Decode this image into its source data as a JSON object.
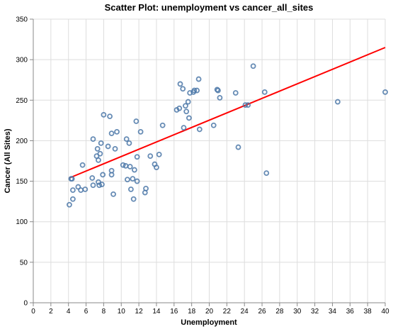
{
  "chart_data": {
    "type": "scatter",
    "title": "Scatter Plot: unemployment vs cancer_all_sites",
    "xlabel": "Unemployment",
    "ylabel": "Cancer (All Sites)",
    "xlim": [
      0,
      40
    ],
    "ylim": [
      0,
      350
    ],
    "xticks": [
      0,
      2,
      4,
      6,
      8,
      10,
      12,
      14,
      16,
      18,
      20,
      22,
      24,
      26,
      28,
      30,
      32,
      34,
      36,
      38,
      40
    ],
    "yticks": [
      0,
      50,
      100,
      150,
      200,
      250,
      300,
      350
    ],
    "grid": true,
    "point_color": "#4c78a8",
    "trend_color": "#ff0000",
    "points": [
      [
        4.1,
        121
      ],
      [
        4.3,
        153
      ],
      [
        4.4,
        153
      ],
      [
        4.5,
        128
      ],
      [
        4.5,
        139
      ],
      [
        5.1,
        143
      ],
      [
        5.4,
        139
      ],
      [
        5.6,
        170
      ],
      [
        5.9,
        140
      ],
      [
        6.7,
        154
      ],
      [
        6.8,
        145
      ],
      [
        6.8,
        202
      ],
      [
        7.2,
        181
      ],
      [
        7.3,
        190
      ],
      [
        7.4,
        176
      ],
      [
        7.4,
        149
      ],
      [
        7.5,
        145
      ],
      [
        7.6,
        184
      ],
      [
        7.7,
        197
      ],
      [
        7.8,
        146
      ],
      [
        7.9,
        158
      ],
      [
        8.0,
        232
      ],
      [
        8.5,
        193
      ],
      [
        8.7,
        230
      ],
      [
        8.9,
        209
      ],
      [
        8.9,
        163
      ],
      [
        8.9,
        158
      ],
      [
        9.1,
        134
      ],
      [
        9.3,
        190
      ],
      [
        9.5,
        211
      ],
      [
        10.2,
        170
      ],
      [
        10.5,
        169
      ],
      [
        10.6,
        202
      ],
      [
        10.7,
        152
      ],
      [
        10.9,
        197
      ],
      [
        11.0,
        168
      ],
      [
        11.1,
        140
      ],
      [
        11.3,
        153
      ],
      [
        11.4,
        128
      ],
      [
        11.5,
        164
      ],
      [
        11.7,
        224
      ],
      [
        11.8,
        180
      ],
      [
        11.8,
        150
      ],
      [
        12.2,
        211
      ],
      [
        12.7,
        136
      ],
      [
        12.8,
        141
      ],
      [
        13.3,
        181
      ],
      [
        13.8,
        171
      ],
      [
        14.0,
        167
      ],
      [
        14.3,
        183
      ],
      [
        14.7,
        219
      ],
      [
        16.3,
        238
      ],
      [
        16.6,
        240
      ],
      [
        16.7,
        270
      ],
      [
        17.0,
        264
      ],
      [
        17.1,
        216
      ],
      [
        17.3,
        243
      ],
      [
        17.4,
        236
      ],
      [
        17.6,
        248
      ],
      [
        17.7,
        228
      ],
      [
        17.8,
        259
      ],
      [
        18.2,
        260
      ],
      [
        18.3,
        262
      ],
      [
        18.6,
        262
      ],
      [
        18.8,
        276
      ],
      [
        18.9,
        214
      ],
      [
        20.5,
        219
      ],
      [
        20.9,
        263
      ],
      [
        21.0,
        262
      ],
      [
        21.2,
        253
      ],
      [
        23.0,
        259
      ],
      [
        23.3,
        192
      ],
      [
        24.1,
        244
      ],
      [
        24.4,
        244
      ],
      [
        25.0,
        292
      ],
      [
        26.3,
        260
      ],
      [
        26.5,
        160
      ],
      [
        34.6,
        248
      ],
      [
        40.0,
        260
      ]
    ],
    "trend_line": {
      "x": [
        4.1,
        40.0
      ],
      "y": [
        154,
        315
      ]
    }
  }
}
